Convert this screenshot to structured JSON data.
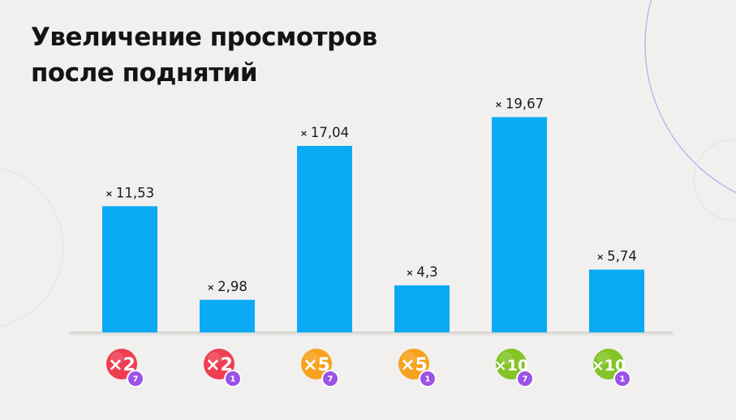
{
  "title_lines": [
    "Увеличение просмотров",
    "после поднятий"
  ],
  "colors": {
    "background": "#f1f0ee",
    "bar": "#0aaaf5",
    "badge_red": "#ee3f52",
    "badge_orange": "#f7a21f",
    "badge_green": "#84c428",
    "badge_sub": "#9b52e6"
  },
  "chart_data": {
    "type": "bar",
    "title": "Увеличение просмотров после поднятий",
    "categories": [
      {
        "multiplier": "×2",
        "sub": "7",
        "color": "red"
      },
      {
        "multiplier": "×2",
        "sub": "1",
        "color": "red"
      },
      {
        "multiplier": "×5",
        "sub": "7",
        "color": "orange"
      },
      {
        "multiplier": "×5",
        "sub": "1",
        "color": "orange"
      },
      {
        "multiplier": "×10",
        "sub": "7",
        "color": "green"
      },
      {
        "multiplier": "×10",
        "sub": "1",
        "color": "green"
      }
    ],
    "values": [
      11.53,
      2.98,
      17.04,
      4.3,
      19.67,
      5.74
    ],
    "data_labels": [
      "11,53",
      "2,98",
      "17,04",
      "4,3",
      "19,67",
      "5,74"
    ],
    "label_prefix": "×",
    "ylim": [
      0,
      20
    ],
    "grid": false,
    "legend": "none"
  }
}
